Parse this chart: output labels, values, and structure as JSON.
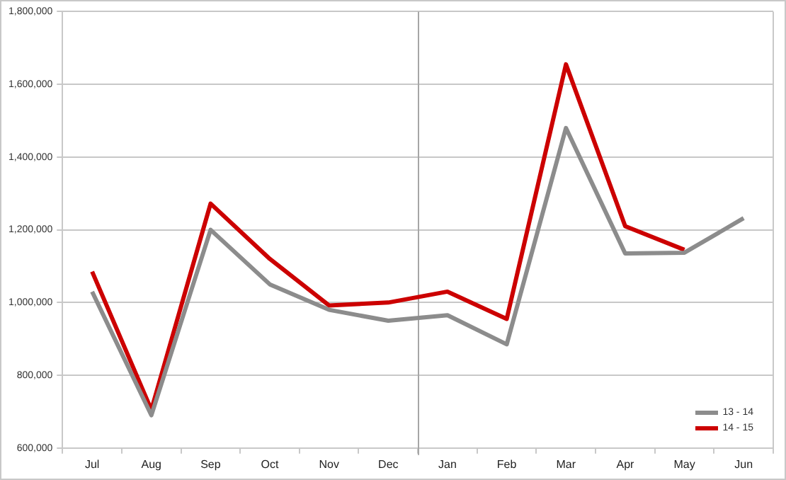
{
  "chart_data": {
    "type": "line",
    "categories": [
      "Jul",
      "Aug",
      "Sep",
      "Oct",
      "Nov",
      "Dec",
      "Jan",
      "Feb",
      "Mar",
      "Apr",
      "May",
      "Jun"
    ],
    "series": [
      {
        "name": "13 - 14",
        "color": "#8c8c8c",
        "values": [
          1030000,
          690000,
          1200000,
          1050000,
          980000,
          950000,
          965000,
          885000,
          1480000,
          1135000,
          1137000,
          1232000
        ]
      },
      {
        "name": "14 - 15",
        "color": "#cc0000",
        "values": [
          1085000,
          705000,
          1272000,
          1120000,
          992000,
          1000000,
          1030000,
          955000,
          1655000,
          1210000,
          1145000,
          null
        ]
      }
    ],
    "ylim": [
      600000,
      1800000
    ],
    "yticks": [
      {
        "value": 600000,
        "label": "600,000"
      },
      {
        "value": 800000,
        "label": "800,000"
      },
      {
        "value": 1000000,
        "label": "1,000,000"
      },
      {
        "value": 1200000,
        "label": "1,200,000"
      },
      {
        "value": 1400000,
        "label": "1,400,000"
      },
      {
        "value": 1600000,
        "label": "1,600,000"
      },
      {
        "value": 1800000,
        "label": "1,800,000"
      }
    ],
    "ref_lines": [
      {
        "axis": "x",
        "value": "Jan",
        "color": "#a6a6a6"
      }
    ],
    "grid": "y",
    "legend": "bottom right",
    "marker": "none",
    "line_style": "solid"
  }
}
